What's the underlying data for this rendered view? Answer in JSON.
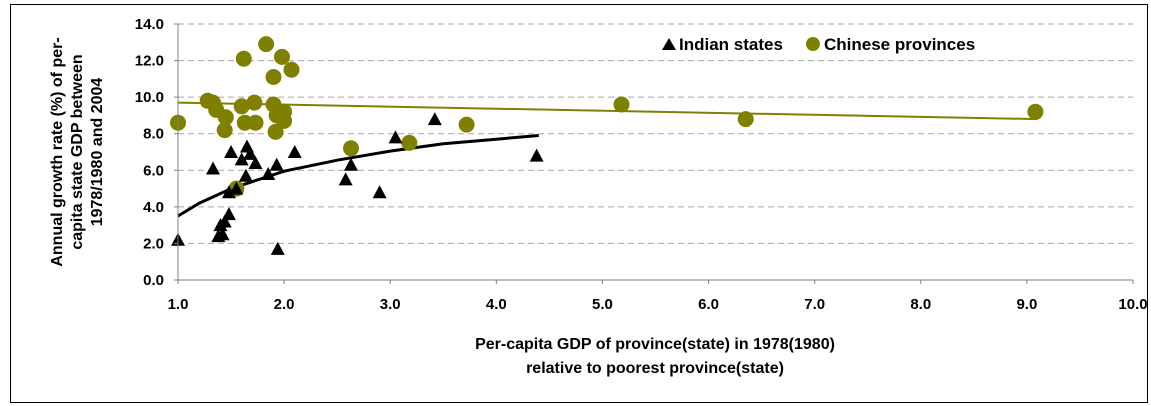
{
  "chart_data": {
    "type": "scatter",
    "xlabel": [
      "Per-capita GDP of province(state) in 1978(1980)",
      "relative to poorest province(state)"
    ],
    "ylabel": [
      "Annual growth rate (%) of per-",
      "capita state GDP between",
      "1978/1980 and 2004"
    ],
    "xlim": [
      1.0,
      10.0
    ],
    "ylim": [
      0.0,
      14.0
    ],
    "x_ticks": [
      "1.0",
      "2.0",
      "3.0",
      "4.0",
      "5.0",
      "6.0",
      "7.0",
      "8.0",
      "9.0",
      "10.0"
    ],
    "y_ticks": [
      "0.0",
      "2.0",
      "4.0",
      "6.0",
      "8.0",
      "10.0",
      "12.0",
      "14.0"
    ],
    "grid": "horizontal dashed",
    "legend_position": "top-right",
    "series": [
      {
        "name": "Indian states",
        "marker": "triangle",
        "color": "#000000",
        "points": [
          [
            1.0,
            2.2
          ],
          [
            1.33,
            6.1
          ],
          [
            1.38,
            2.4
          ],
          [
            1.4,
            3.0
          ],
          [
            1.42,
            2.5
          ],
          [
            1.44,
            3.2
          ],
          [
            1.48,
            3.6
          ],
          [
            1.48,
            4.8
          ],
          [
            1.5,
            7.0
          ],
          [
            1.55,
            5.0
          ],
          [
            1.6,
            6.6
          ],
          [
            1.64,
            5.7
          ],
          [
            1.65,
            7.3
          ],
          [
            1.68,
            6.9
          ],
          [
            1.73,
            6.4
          ],
          [
            1.85,
            5.8
          ],
          [
            1.93,
            6.3
          ],
          [
            1.94,
            1.7
          ],
          [
            2.1,
            7.0
          ],
          [
            2.58,
            5.5
          ],
          [
            2.63,
            6.3
          ],
          [
            2.9,
            4.8
          ],
          [
            3.05,
            7.8
          ],
          [
            3.42,
            8.8
          ],
          [
            4.38,
            6.8
          ]
        ],
        "trend": {
          "type": "logarithmic",
          "color": "#000000",
          "x_range": [
            1.0,
            4.4
          ],
          "points": [
            [
              1.0,
              3.5
            ],
            [
              1.2,
              4.2
            ],
            [
              1.5,
              5.0
            ],
            [
              2.0,
              5.95
            ],
            [
              2.5,
              6.55
            ],
            [
              3.0,
              7.05
            ],
            [
              3.5,
              7.45
            ],
            [
              4.0,
              7.7
            ],
            [
              4.4,
              7.9
            ]
          ]
        }
      },
      {
        "name": "Chinese provinces",
        "marker": "circle",
        "color": "#808000",
        "points": [
          [
            1.0,
            8.6
          ],
          [
            1.28,
            9.8
          ],
          [
            1.33,
            9.7
          ],
          [
            1.36,
            9.3
          ],
          [
            1.44,
            8.2
          ],
          [
            1.45,
            8.9
          ],
          [
            1.55,
            5.0
          ],
          [
            1.6,
            9.5
          ],
          [
            1.62,
            12.1
          ],
          [
            1.63,
            8.6
          ],
          [
            1.73,
            8.6
          ],
          [
            1.72,
            9.7
          ],
          [
            1.83,
            12.9
          ],
          [
            1.9,
            11.1
          ],
          [
            1.9,
            9.6
          ],
          [
            1.92,
            8.1
          ],
          [
            1.93,
            9.0
          ],
          [
            1.97,
            9.0
          ],
          [
            1.98,
            12.2
          ],
          [
            2.0,
            8.7
          ],
          [
            2.0,
            9.2
          ],
          [
            2.07,
            11.5
          ],
          [
            2.63,
            7.2
          ],
          [
            3.18,
            7.5
          ],
          [
            3.72,
            8.5
          ],
          [
            5.18,
            9.6
          ],
          [
            6.35,
            8.8
          ],
          [
            9.08,
            9.2
          ]
        ],
        "trend": {
          "type": "linear",
          "color": "#808000",
          "x_range": [
            1.0,
            9.1
          ],
          "points": [
            [
              1.0,
              9.7
            ],
            [
              9.1,
              8.8
            ]
          ]
        }
      }
    ]
  }
}
